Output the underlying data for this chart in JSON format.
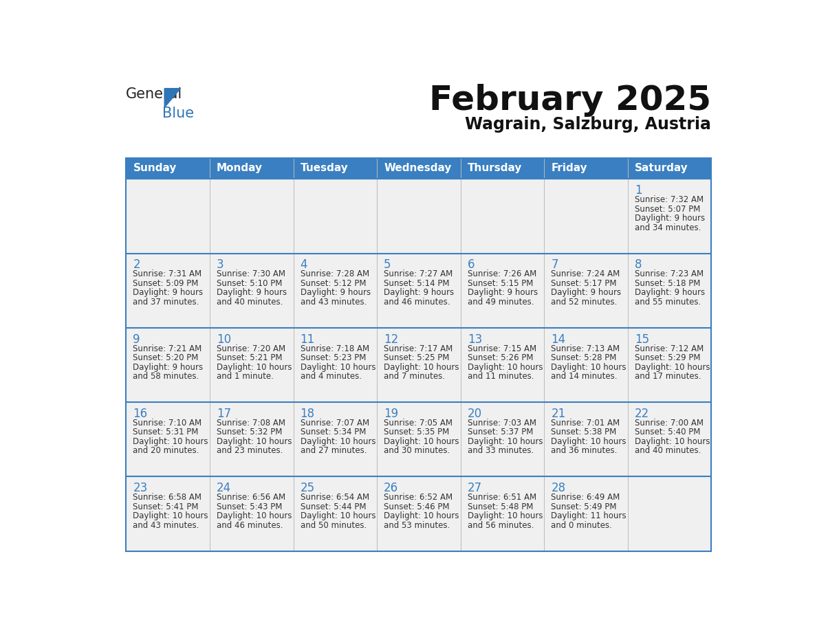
{
  "title": "February 2025",
  "subtitle": "Wagrain, Salzburg, Austria",
  "days_of_week": [
    "Sunday",
    "Monday",
    "Tuesday",
    "Wednesday",
    "Thursday",
    "Friday",
    "Saturday"
  ],
  "header_bg": "#3A7FC1",
  "header_text": "#FFFFFF",
  "cell_bg": "#F0F0F0",
  "border_color": "#3A7FC1",
  "row_border_color": "#3A7FC1",
  "day_number_color": "#3A7FC1",
  "info_text_color": "#333333",
  "title_color": "#111111",
  "subtitle_color": "#111111",
  "logo_general_color": "#222222",
  "logo_blue_color": "#2E75B6",
  "weeks": [
    [
      {
        "day": null,
        "info": ""
      },
      {
        "day": null,
        "info": ""
      },
      {
        "day": null,
        "info": ""
      },
      {
        "day": null,
        "info": ""
      },
      {
        "day": null,
        "info": ""
      },
      {
        "day": null,
        "info": ""
      },
      {
        "day": 1,
        "info": "Sunrise: 7:32 AM\nSunset: 5:07 PM\nDaylight: 9 hours\nand 34 minutes."
      }
    ],
    [
      {
        "day": 2,
        "info": "Sunrise: 7:31 AM\nSunset: 5:09 PM\nDaylight: 9 hours\nand 37 minutes."
      },
      {
        "day": 3,
        "info": "Sunrise: 7:30 AM\nSunset: 5:10 PM\nDaylight: 9 hours\nand 40 minutes."
      },
      {
        "day": 4,
        "info": "Sunrise: 7:28 AM\nSunset: 5:12 PM\nDaylight: 9 hours\nand 43 minutes."
      },
      {
        "day": 5,
        "info": "Sunrise: 7:27 AM\nSunset: 5:14 PM\nDaylight: 9 hours\nand 46 minutes."
      },
      {
        "day": 6,
        "info": "Sunrise: 7:26 AM\nSunset: 5:15 PM\nDaylight: 9 hours\nand 49 minutes."
      },
      {
        "day": 7,
        "info": "Sunrise: 7:24 AM\nSunset: 5:17 PM\nDaylight: 9 hours\nand 52 minutes."
      },
      {
        "day": 8,
        "info": "Sunrise: 7:23 AM\nSunset: 5:18 PM\nDaylight: 9 hours\nand 55 minutes."
      }
    ],
    [
      {
        "day": 9,
        "info": "Sunrise: 7:21 AM\nSunset: 5:20 PM\nDaylight: 9 hours\nand 58 minutes."
      },
      {
        "day": 10,
        "info": "Sunrise: 7:20 AM\nSunset: 5:21 PM\nDaylight: 10 hours\nand 1 minute."
      },
      {
        "day": 11,
        "info": "Sunrise: 7:18 AM\nSunset: 5:23 PM\nDaylight: 10 hours\nand 4 minutes."
      },
      {
        "day": 12,
        "info": "Sunrise: 7:17 AM\nSunset: 5:25 PM\nDaylight: 10 hours\nand 7 minutes."
      },
      {
        "day": 13,
        "info": "Sunrise: 7:15 AM\nSunset: 5:26 PM\nDaylight: 10 hours\nand 11 minutes."
      },
      {
        "day": 14,
        "info": "Sunrise: 7:13 AM\nSunset: 5:28 PM\nDaylight: 10 hours\nand 14 minutes."
      },
      {
        "day": 15,
        "info": "Sunrise: 7:12 AM\nSunset: 5:29 PM\nDaylight: 10 hours\nand 17 minutes."
      }
    ],
    [
      {
        "day": 16,
        "info": "Sunrise: 7:10 AM\nSunset: 5:31 PM\nDaylight: 10 hours\nand 20 minutes."
      },
      {
        "day": 17,
        "info": "Sunrise: 7:08 AM\nSunset: 5:32 PM\nDaylight: 10 hours\nand 23 minutes."
      },
      {
        "day": 18,
        "info": "Sunrise: 7:07 AM\nSunset: 5:34 PM\nDaylight: 10 hours\nand 27 minutes."
      },
      {
        "day": 19,
        "info": "Sunrise: 7:05 AM\nSunset: 5:35 PM\nDaylight: 10 hours\nand 30 minutes."
      },
      {
        "day": 20,
        "info": "Sunrise: 7:03 AM\nSunset: 5:37 PM\nDaylight: 10 hours\nand 33 minutes."
      },
      {
        "day": 21,
        "info": "Sunrise: 7:01 AM\nSunset: 5:38 PM\nDaylight: 10 hours\nand 36 minutes."
      },
      {
        "day": 22,
        "info": "Sunrise: 7:00 AM\nSunset: 5:40 PM\nDaylight: 10 hours\nand 40 minutes."
      }
    ],
    [
      {
        "day": 23,
        "info": "Sunrise: 6:58 AM\nSunset: 5:41 PM\nDaylight: 10 hours\nand 43 minutes."
      },
      {
        "day": 24,
        "info": "Sunrise: 6:56 AM\nSunset: 5:43 PM\nDaylight: 10 hours\nand 46 minutes."
      },
      {
        "day": 25,
        "info": "Sunrise: 6:54 AM\nSunset: 5:44 PM\nDaylight: 10 hours\nand 50 minutes."
      },
      {
        "day": 26,
        "info": "Sunrise: 6:52 AM\nSunset: 5:46 PM\nDaylight: 10 hours\nand 53 minutes."
      },
      {
        "day": 27,
        "info": "Sunrise: 6:51 AM\nSunset: 5:48 PM\nDaylight: 10 hours\nand 56 minutes."
      },
      {
        "day": 28,
        "info": "Sunrise: 6:49 AM\nSunset: 5:49 PM\nDaylight: 11 hours\nand 0 minutes."
      },
      {
        "day": null,
        "info": ""
      }
    ]
  ]
}
